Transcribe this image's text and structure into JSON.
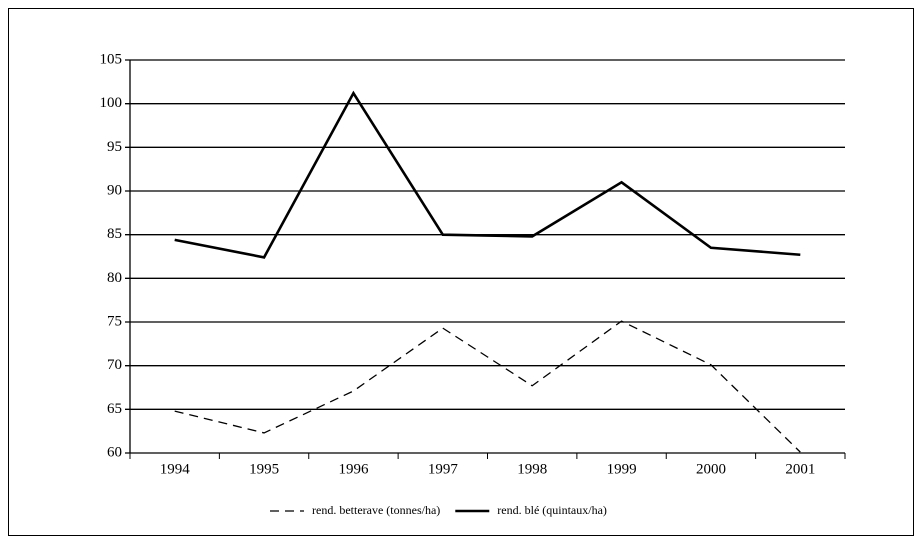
{
  "chart_data": {
    "type": "line",
    "categories": [
      "1994",
      "1995",
      "1996",
      "1997",
      "1998",
      "1999",
      "2000",
      "2001"
    ],
    "series": [
      {
        "name": "rend. betterave (tonnes/ha)",
        "color": "#000000",
        "dash": true,
        "values": [
          64.8,
          62.3,
          67.1,
          74.3,
          67.7,
          75.1,
          70.1,
          60.1
        ]
      },
      {
        "name": "rend. blé (quintaux/ha)",
        "color": "#000000",
        "dash": false,
        "values": [
          84.4,
          82.4,
          101.2,
          85.0,
          84.8,
          91.0,
          83.5,
          82.7
        ]
      }
    ],
    "ylim": [
      60,
      105
    ],
    "yticks": [
      60,
      65,
      70,
      75,
      80,
      85,
      90,
      95,
      100,
      105
    ],
    "grid": true,
    "legend": "bottom"
  }
}
